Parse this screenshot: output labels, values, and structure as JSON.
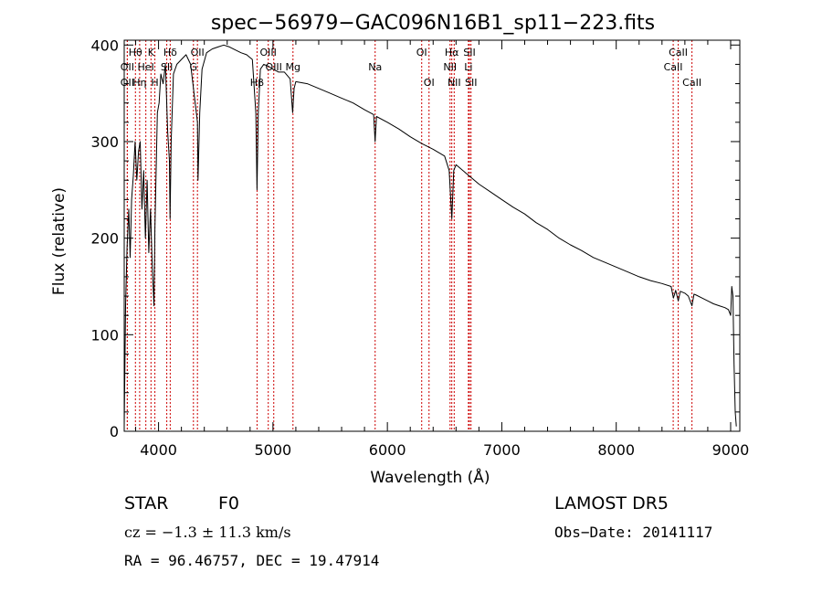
{
  "chart_data": {
    "type": "line",
    "title": "spec−56979−GAC096N16B1_sp11−223.fits",
    "xlabel": "Wavelength (Å)",
    "ylabel": "Flux (relative)",
    "xlim": [
      3700,
      9080
    ],
    "ylim": [
      0,
      405
    ],
    "x_ticks": [
      4000,
      5000,
      6000,
      7000,
      8000,
      9000
    ],
    "y_ticks": [
      0,
      100,
      200,
      300,
      400
    ],
    "grid": false,
    "legend": "none",
    "line_color": "#000000",
    "marker_color": "#cc0000",
    "series": [
      {
        "x": [
          3700,
          3712,
          3725,
          3740,
          3752,
          3765,
          3780,
          3795,
          3810,
          3825,
          3840,
          3855,
          3870,
          3885,
          3900,
          3915,
          3930,
          3945,
          3960,
          3968,
          3975,
          3990,
          4005,
          4020,
          4040,
          4060,
          4080,
          4095,
          4101,
          4110,
          4130,
          4160,
          4200,
          4240,
          4280,
          4320,
          4340,
          4345,
          4360,
          4380,
          4420,
          4470,
          4520,
          4570,
          4620,
          4670,
          4720,
          4770,
          4820,
          4850,
          4861,
          4872,
          4890,
          4920,
          4960,
          5000,
          5050,
          5100,
          5150,
          5172,
          5185,
          5200,
          5300,
          5400,
          5500,
          5600,
          5700,
          5800,
          5880,
          5893,
          5905,
          6000,
          6100,
          6200,
          6300,
          6400,
          6500,
          6540,
          6563,
          6580,
          6600,
          6700,
          6800,
          6900,
          7000,
          7100,
          7200,
          7300,
          7400,
          7500,
          7600,
          7700,
          7800,
          7900,
          8000,
          8100,
          8200,
          8300,
          8400,
          8480,
          8500,
          8520,
          8542,
          8560,
          8600,
          8630,
          8662,
          8680,
          8700,
          8750,
          8800,
          8850,
          8900,
          8950,
          8980,
          9000,
          9010,
          9020,
          9030,
          9040,
          9050
        ],
        "values": [
          5,
          130,
          190,
          230,
          180,
          240,
          265,
          300,
          260,
          290,
          300,
          230,
          270,
          200,
          260,
          185,
          230,
          170,
          130,
          210,
          250,
          330,
          340,
          370,
          360,
          380,
          310,
          280,
          220,
          300,
          370,
          380,
          385,
          390,
          380,
          340,
          320,
          260,
          330,
          375,
          392,
          396,
          398,
          400,
          398,
          395,
          392,
          390,
          385,
          330,
          250,
          330,
          375,
          380,
          378,
          375,
          372,
          372,
          365,
          330,
          355,
          362,
          360,
          355,
          350,
          345,
          340,
          333,
          328,
          300,
          326,
          320,
          313,
          305,
          298,
          292,
          285,
          270,
          220,
          270,
          276,
          266,
          256,
          248,
          240,
          232,
          225,
          216,
          209,
          200,
          193,
          187,
          180,
          175,
          170,
          165,
          160,
          156,
          153,
          150,
          138,
          146,
          135,
          145,
          143,
          140,
          130,
          142,
          141,
          138,
          135,
          132,
          130,
          128,
          126,
          120,
          150,
          140,
          70,
          20,
          5
        ]
      }
    ],
    "spectral_lines": [
      {
        "name": "Hθ",
        "x": 3798,
        "row": 1
      },
      {
        "name": "OII",
        "x": 3727,
        "row": 2
      },
      {
        "name": "OII",
        "x": 3727,
        "row": 3
      },
      {
        "name": "K",
        "x": 3934,
        "row": 1
      },
      {
        "name": "HeI",
        "x": 3889,
        "row": 2
      },
      {
        "name": "Hη",
        "x": 3835,
        "row": 3
      },
      {
        "name": "Hδ",
        "x": 4102,
        "row": 1
      },
      {
        "name": "SII",
        "x": 4072,
        "row": 2
      },
      {
        "name": "H",
        "x": 3968,
        "row": 3
      },
      {
        "name": "OII",
        "x": 4340,
        "row": 1
      },
      {
        "name": "G",
        "x": 4305,
        "row": 2
      },
      {
        "name": "OIII",
        "x": 4959,
        "row": 1
      },
      {
        "name": "OIII",
        "x": 5007,
        "row": 2
      },
      {
        "name": "Hβ",
        "x": 4861,
        "row": 3
      },
      {
        "name": "Mg",
        "x": 5175,
        "row": 2
      },
      {
        "name": "Na",
        "x": 5893,
        "row": 2
      },
      {
        "name": "OI",
        "x": 6300,
        "row": 1
      },
      {
        "name": "OI",
        "x": 6364,
        "row": 3
      },
      {
        "name": "Hα",
        "x": 6563,
        "row": 1
      },
      {
        "name": "SII",
        "x": 6717,
        "row": 1
      },
      {
        "name": "NII",
        "x": 6548,
        "row": 2
      },
      {
        "name": "Li",
        "x": 6708,
        "row": 2
      },
      {
        "name": "NII",
        "x": 6584,
        "row": 3
      },
      {
        "name": "SII",
        "x": 6731,
        "row": 3
      },
      {
        "name": "CaII",
        "x": 8542,
        "row": 1
      },
      {
        "name": "CaII",
        "x": 8498,
        "row": 2
      },
      {
        "name": "CaII",
        "x": 8662,
        "row": 3
      }
    ]
  },
  "info": {
    "class_label": "STAR",
    "subclass": "F0",
    "survey": "LAMOST DR5",
    "cz_text": "cz = −1.3 ± 11.3 km/s",
    "obs_date": "Obs−Date: 20141117",
    "coords": "RA =  96.46757, DEC =  19.47914"
  }
}
